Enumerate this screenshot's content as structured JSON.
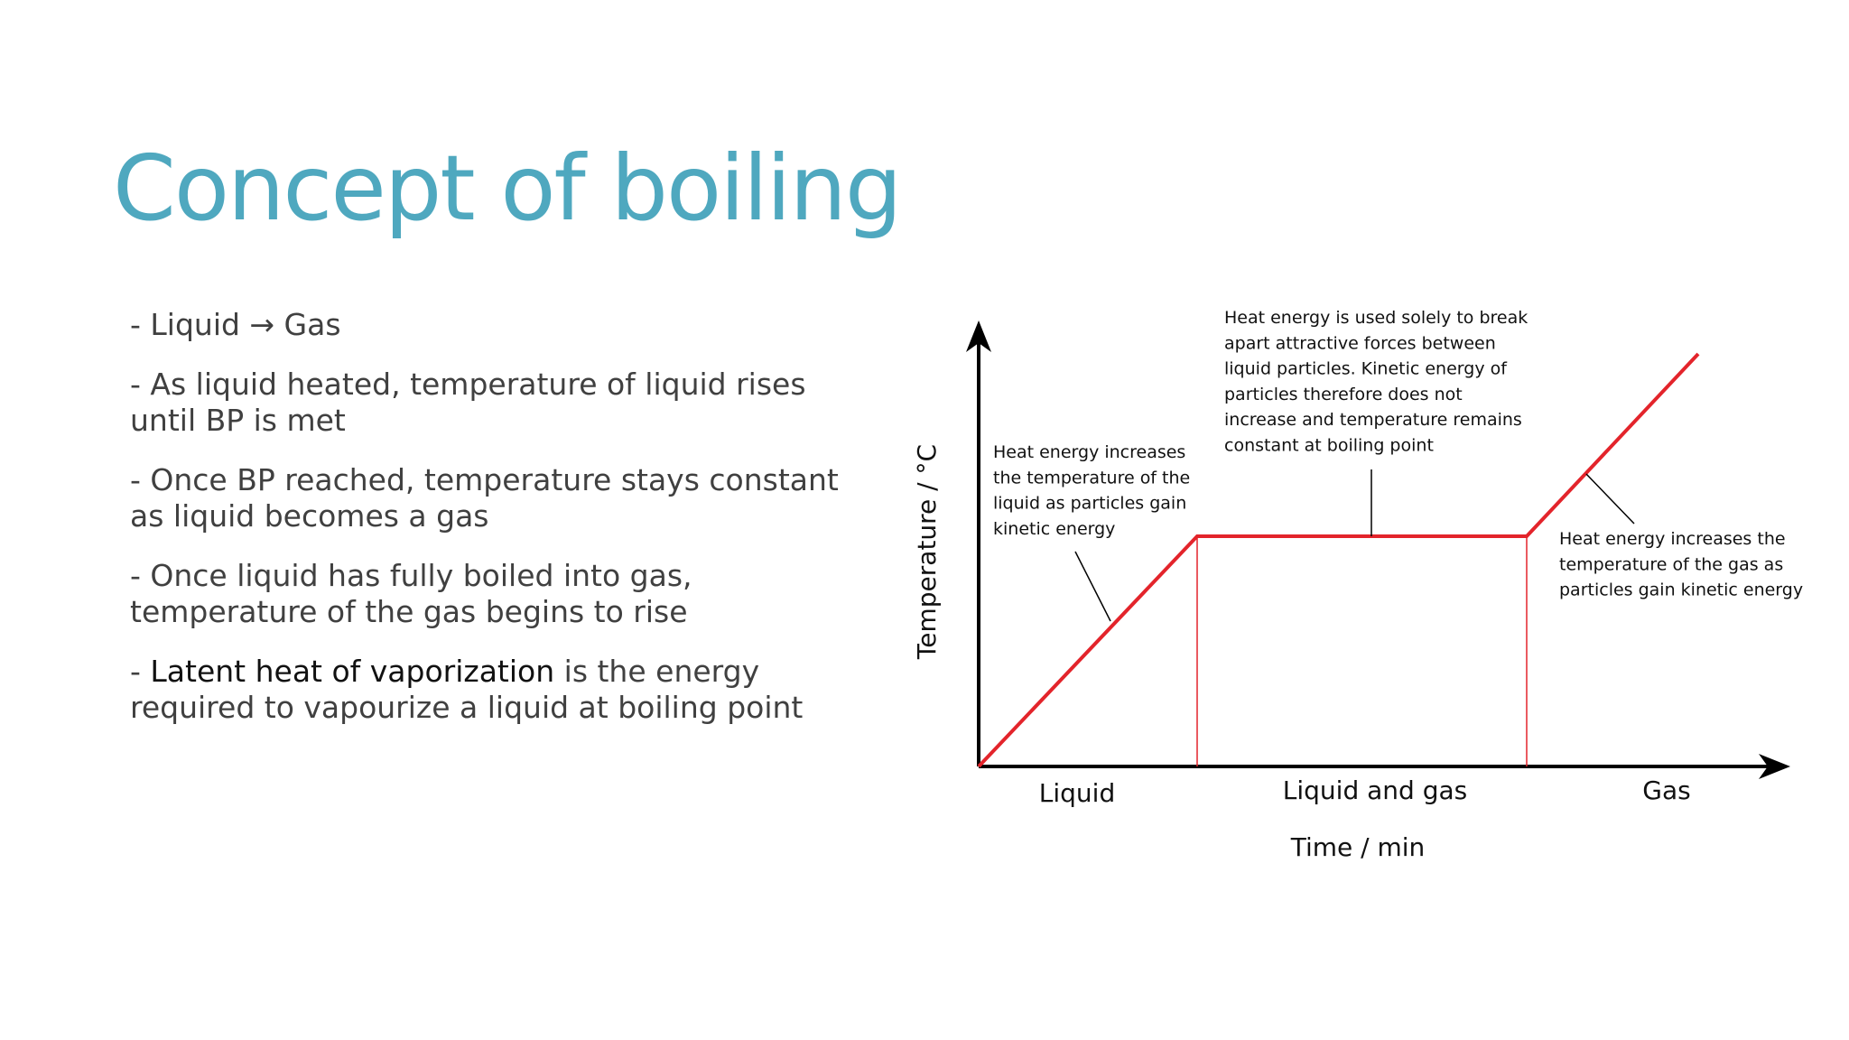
{
  "title": "Concept of boiling",
  "bullets": [
    {
      "text": "- Liquid → Gas"
    },
    {
      "text": "- As liquid heated, temperature of liquid rises until BP is met"
    },
    {
      "text": "- Once BP reached, temperature stays constant as liquid becomes a gas"
    },
    {
      "text": "- Once liquid has fully boiled into gas, temperature of the gas begins to rise"
    },
    {
      "prefix": "- ",
      "term": "Latent heat of vaporization",
      "text": " is the energy required to vapourize a liquid at boiling point"
    }
  ],
  "diagram": {
    "y_axis_label": "Temperature / °C",
    "x_axis_label": "Time / min",
    "phases": [
      "Liquid",
      "Liquid and gas",
      "Gas"
    ],
    "annotations": [
      {
        "lines": [
          "Heat energy increases",
          "the temperature of the",
          "liquid as particles gain",
          "kinetic energy"
        ]
      },
      {
        "lines": [
          "Heat energy is used solely to break",
          "apart attractive forces between",
          "liquid particles. Kinetic energy of",
          "particles therefore does not",
          "increase and temperature remains",
          "constant at boiling point"
        ]
      },
      {
        "lines": [
          "Heat energy increases the",
          "temperature of the gas as",
          "particles gain kinetic energy"
        ]
      }
    ]
  }
}
